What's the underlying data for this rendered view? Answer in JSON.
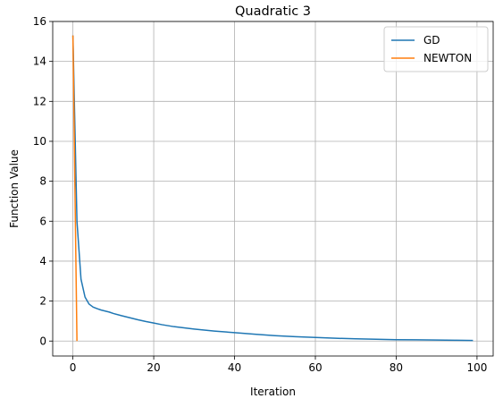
{
  "chart_data": {
    "type": "line",
    "title": "Quadratic 3",
    "xlabel": "Iteration",
    "ylabel": "Function Value",
    "xlim": [
      -5,
      104
    ],
    "ylim": [
      -0.75,
      16
    ],
    "xticks": [
      0,
      20,
      40,
      60,
      80,
      100
    ],
    "yticks": [
      0,
      2,
      4,
      6,
      8,
      10,
      12,
      14,
      16
    ],
    "grid": true,
    "legend_position": "top-right",
    "series": [
      {
        "name": "GD",
        "color": "#1f77b4",
        "x": [
          0,
          1,
          2,
          3,
          4,
          5,
          6,
          7,
          8,
          9,
          10,
          12,
          14,
          16,
          18,
          20,
          22,
          25,
          30,
          35,
          40,
          45,
          50,
          55,
          60,
          65,
          70,
          75,
          80,
          85,
          90,
          95,
          99
        ],
        "y": [
          15.3,
          6.0,
          3.1,
          2.2,
          1.85,
          1.7,
          1.62,
          1.55,
          1.5,
          1.45,
          1.38,
          1.27,
          1.17,
          1.07,
          0.98,
          0.9,
          0.82,
          0.72,
          0.6,
          0.5,
          0.42,
          0.34,
          0.27,
          0.22,
          0.18,
          0.14,
          0.11,
          0.09,
          0.07,
          0.06,
          0.05,
          0.04,
          0.03
        ]
      },
      {
        "name": "NEWTON",
        "color": "#ff7f0e",
        "x": [
          0,
          1
        ],
        "y": [
          15.3,
          0.0
        ]
      }
    ]
  }
}
